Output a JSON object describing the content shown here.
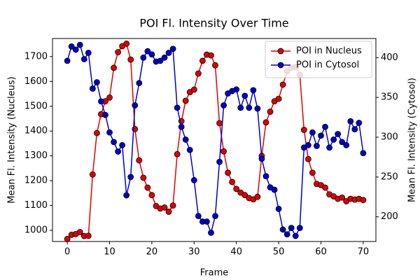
{
  "chart_data": {
    "type": "line",
    "title": "POI Fl. Intensity Over Time",
    "x_label": "Frame",
    "y_label": "Mean Fl. Intensity (Nucleus)",
    "y2_label": "Mean Fl. Intensity (Cytosol)",
    "x": [
      0,
      1,
      2,
      3,
      4,
      5,
      6,
      7,
      8,
      9,
      10,
      11,
      12,
      13,
      14,
      15,
      16,
      17,
      18,
      19,
      20,
      21,
      22,
      23,
      24,
      25,
      26,
      27,
      28,
      29,
      30,
      31,
      32,
      33,
      34,
      35,
      36,
      37,
      38,
      39,
      40,
      41,
      42,
      43,
      44,
      45,
      46,
      47,
      48,
      49,
      50,
      51,
      52,
      53,
      54,
      55,
      56,
      57,
      58,
      59,
      60,
      61,
      62,
      63,
      64,
      65,
      66,
      67,
      68,
      69,
      70
    ],
    "xlim": [
      -3.5,
      73
    ],
    "xticks": [
      0,
      10,
      20,
      30,
      40,
      50,
      60,
      70
    ],
    "ylim": [
      955,
      1773
    ],
    "yticks": [
      1000,
      1100,
      1200,
      1300,
      1400,
      1500,
      1600,
      1700
    ],
    "y2lim": [
      169,
      424
    ],
    "y2ticks": [
      200,
      250,
      300,
      350,
      400
    ],
    "legend": "upper right",
    "grid": false,
    "series": [
      {
        "name": "POI in Nucleus",
        "color": "#e00000",
        "axis": "y",
        "values": [
          965,
          982,
          985,
          993,
          977,
          978,
          1225,
          1392,
          1468,
          1520,
          1535,
          1655,
          1718,
          1742,
          1752,
          1688,
          1408,
          1282,
          1212,
          1172,
          1142,
          1098,
          1088,
          1092,
          1075,
          1100,
          1307,
          1440,
          1522,
          1557,
          1567,
          1632,
          1683,
          1708,
          1705,
          1665,
          1432,
          1318,
          1232,
          1195,
          1167,
          1152,
          1142,
          1130,
          1125,
          1135,
          1300,
          1435,
          1478,
          1520,
          1530,
          1587,
          1640,
          1655,
          1658,
          1627,
          1405,
          1287,
          1232,
          1187,
          1182,
          1172,
          1145,
          1137,
          1127,
          1132,
          1117,
          1127,
          1124,
          1127,
          1122
        ]
      },
      {
        "name": "POI in Cytosol",
        "color": "#0000cc",
        "axis": "y2",
        "values": [
          396,
          414,
          410,
          416,
          398,
          406,
          361,
          369,
          345,
          328,
          306,
          294,
          282,
          290,
          227,
          250,
          340,
          368,
          400,
          408,
          404,
          395,
          396,
          400,
          406,
          411,
          337,
          313,
          297,
          284,
          246,
          201,
          194,
          194,
          180,
          201,
          269,
          340,
          355,
          358,
          360,
          337,
          352,
          337,
          359,
          336,
          273,
          251,
          237,
          234,
          210,
          184,
          178,
          186,
          176,
          186,
          287,
          290,
          306,
          289,
          302,
          313,
          287,
          297,
          304,
          294,
          290,
          320,
          310,
          318,
          280
        ]
      }
    ]
  }
}
